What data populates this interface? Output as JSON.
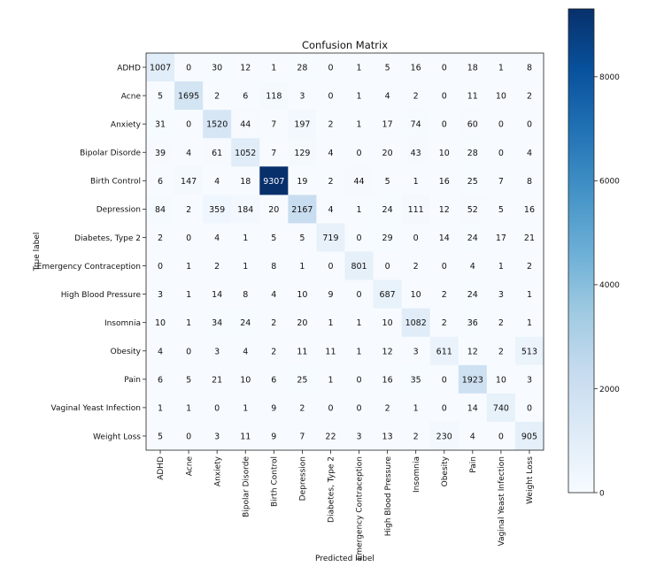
{
  "chart_data": {
    "type": "heatmap",
    "title": "Confusion Matrix",
    "xlabel": "Predicted label",
    "ylabel": "True label",
    "labels": [
      "ADHD",
      "Acne",
      "Anxiety",
      "Bipolar Disorde",
      "Birth Control",
      "Depression",
      "Diabetes, Type 2",
      "Emergency Contraception",
      "High Blood Pressure",
      "Insomnia",
      "Obesity",
      "Pain",
      "Vaginal Yeast Infection",
      "Weight Loss"
    ],
    "matrix": [
      [
        1007,
        0,
        30,
        12,
        1,
        28,
        0,
        1,
        5,
        16,
        0,
        18,
        1,
        8
      ],
      [
        5,
        1695,
        2,
        6,
        118,
        3,
        0,
        1,
        4,
        2,
        0,
        11,
        10,
        2
      ],
      [
        31,
        0,
        1520,
        44,
        7,
        197,
        2,
        1,
        17,
        74,
        0,
        60,
        0,
        0
      ],
      [
        39,
        4,
        61,
        1052,
        7,
        129,
        4,
        0,
        20,
        43,
        10,
        28,
        0,
        4
      ],
      [
        6,
        147,
        4,
        18,
        9307,
        19,
        2,
        44,
        5,
        1,
        16,
        25,
        7,
        8
      ],
      [
        84,
        2,
        359,
        184,
        20,
        2167,
        4,
        1,
        24,
        111,
        12,
        52,
        5,
        16
      ],
      [
        2,
        0,
        4,
        1,
        5,
        5,
        719,
        0,
        29,
        0,
        14,
        24,
        17,
        21
      ],
      [
        0,
        1,
        2,
        1,
        8,
        1,
        0,
        801,
        0,
        2,
        0,
        4,
        1,
        2
      ],
      [
        3,
        1,
        14,
        8,
        4,
        10,
        9,
        0,
        687,
        10,
        2,
        24,
        3,
        1
      ],
      [
        10,
        1,
        34,
        24,
        2,
        20,
        1,
        1,
        10,
        1082,
        2,
        36,
        2,
        1
      ],
      [
        4,
        0,
        3,
        4,
        2,
        11,
        11,
        1,
        12,
        3,
        611,
        12,
        2,
        513
      ],
      [
        6,
        5,
        21,
        10,
        6,
        25,
        1,
        0,
        16,
        35,
        0,
        1923,
        10,
        3
      ],
      [
        1,
        1,
        0,
        1,
        9,
        2,
        0,
        0,
        2,
        1,
        0,
        14,
        740,
        0
      ],
      [
        5,
        0,
        3,
        11,
        9,
        7,
        22,
        3,
        13,
        2,
        230,
        4,
        0,
        905
      ]
    ],
    "colormap": "Blues",
    "vmin": 0,
    "vmax": 9307,
    "colorbar_ticks": [
      0,
      2000,
      4000,
      6000,
      8000
    ],
    "text_threshold": 4653.5
  }
}
